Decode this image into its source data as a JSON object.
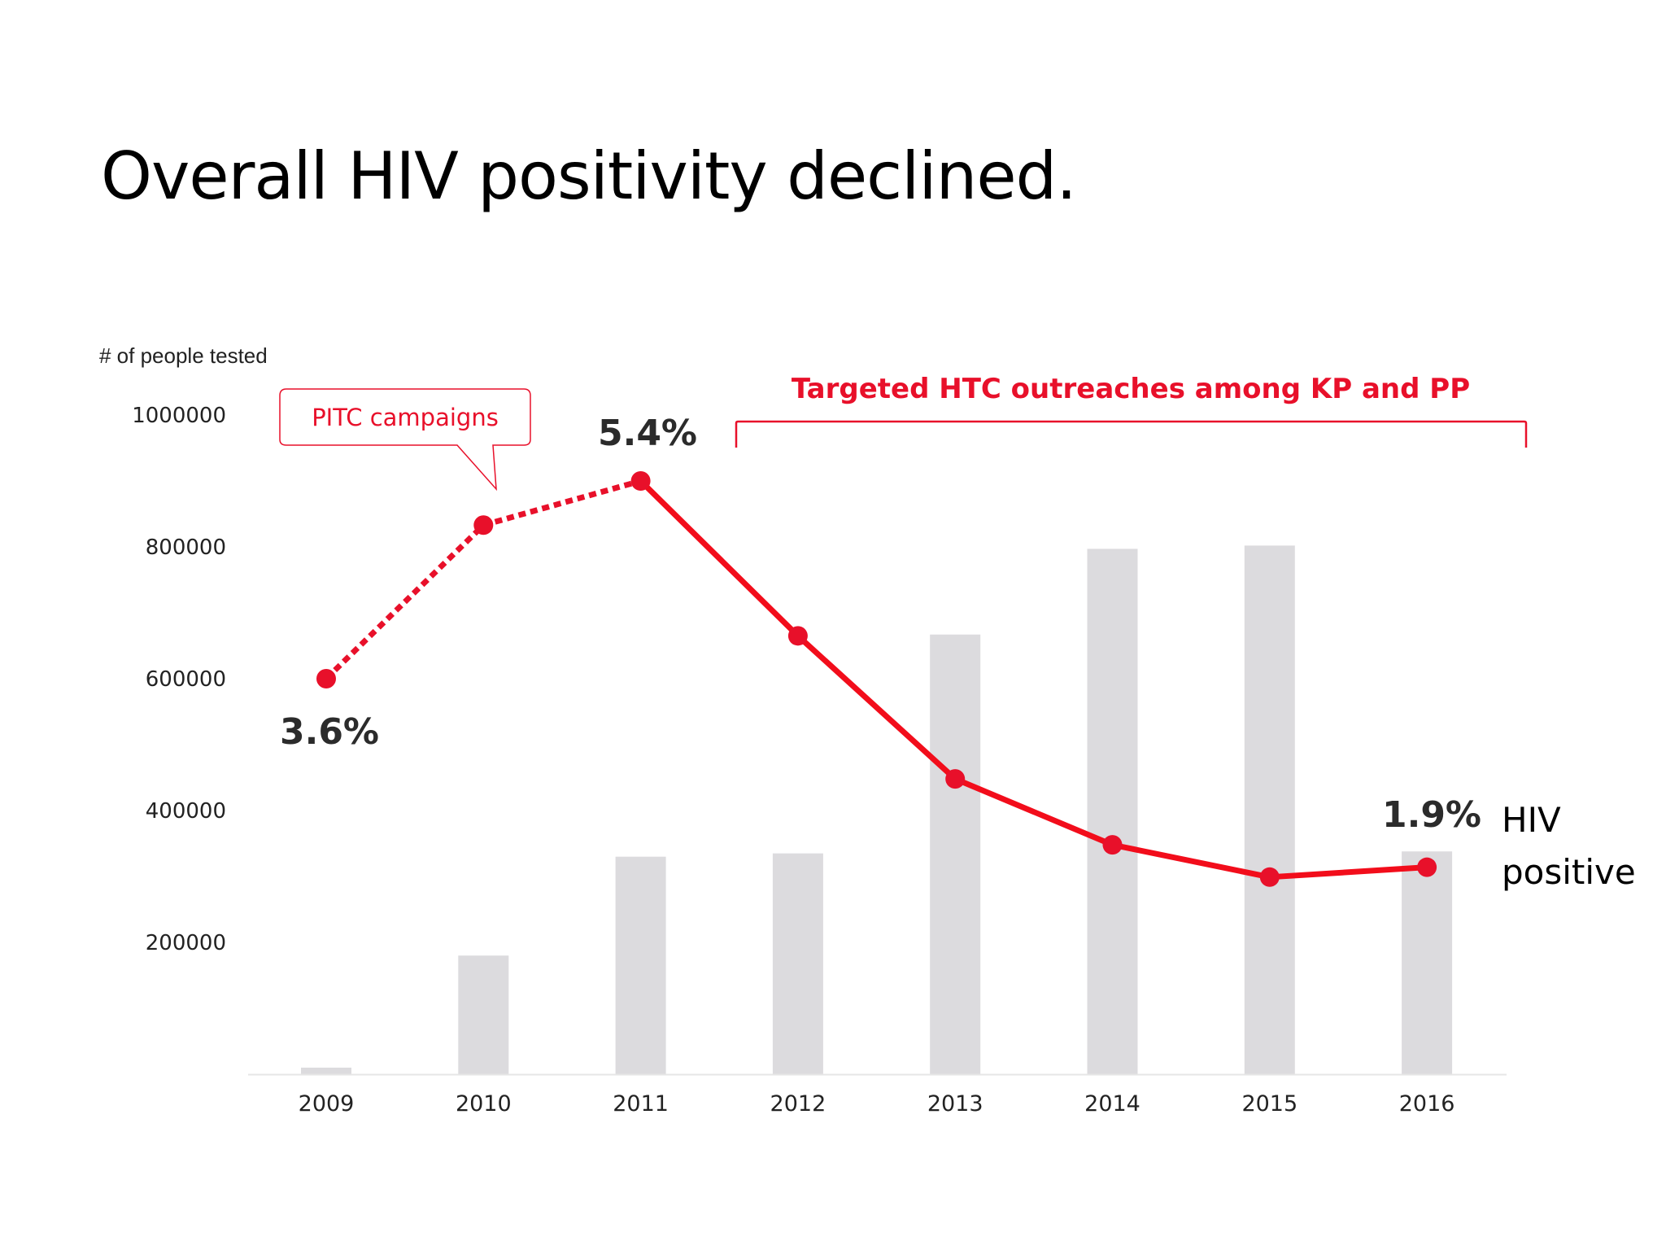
{
  "slide": {
    "title": "Overall HIV positivity declined."
  },
  "colors": {
    "accent": "#e8102a",
    "bar": "#dcdbde",
    "text": "#222222",
    "axis": "#e6e6e6"
  },
  "chart_data": {
    "type": "bar",
    "title": "Overall HIV positivity declined.",
    "ylabel": "# of people tested",
    "xlabel": "",
    "categories": [
      "2009",
      "2010",
      "2011",
      "2012",
      "2013",
      "2014",
      "2015",
      "2016"
    ],
    "ylim": [
      0,
      1000000
    ],
    "yticks": [
      {
        "value": 200000,
        "label": "200000"
      },
      {
        "value": 400000,
        "label": "400000"
      },
      {
        "value": 600000,
        "label": "600000"
      },
      {
        "value": 800000,
        "label": "800000"
      },
      {
        "value": 1000000,
        "label": "1000000"
      }
    ],
    "series": [
      {
        "name": "# of people tested",
        "type": "bar",
        "values": [
          10000,
          180000,
          330000,
          335000,
          667000,
          797000,
          802000,
          338000
        ]
      },
      {
        "name": "HIV positive",
        "type": "line",
        "values": [
          600000,
          833000,
          900000,
          665000,
          448000,
          348000,
          299000,
          314000
        ],
        "dashed_until_index": 2
      }
    ],
    "annotations": {
      "label_2009": "3.6%",
      "label_2011": "5.4%",
      "label_2016": "1.9%",
      "series_label_line1": "HIV",
      "series_label_line2": "positive",
      "pitc_callout": "PITC campaigns",
      "targeted_bracket": "Targeted HTC outreaches among KP and PP"
    }
  }
}
